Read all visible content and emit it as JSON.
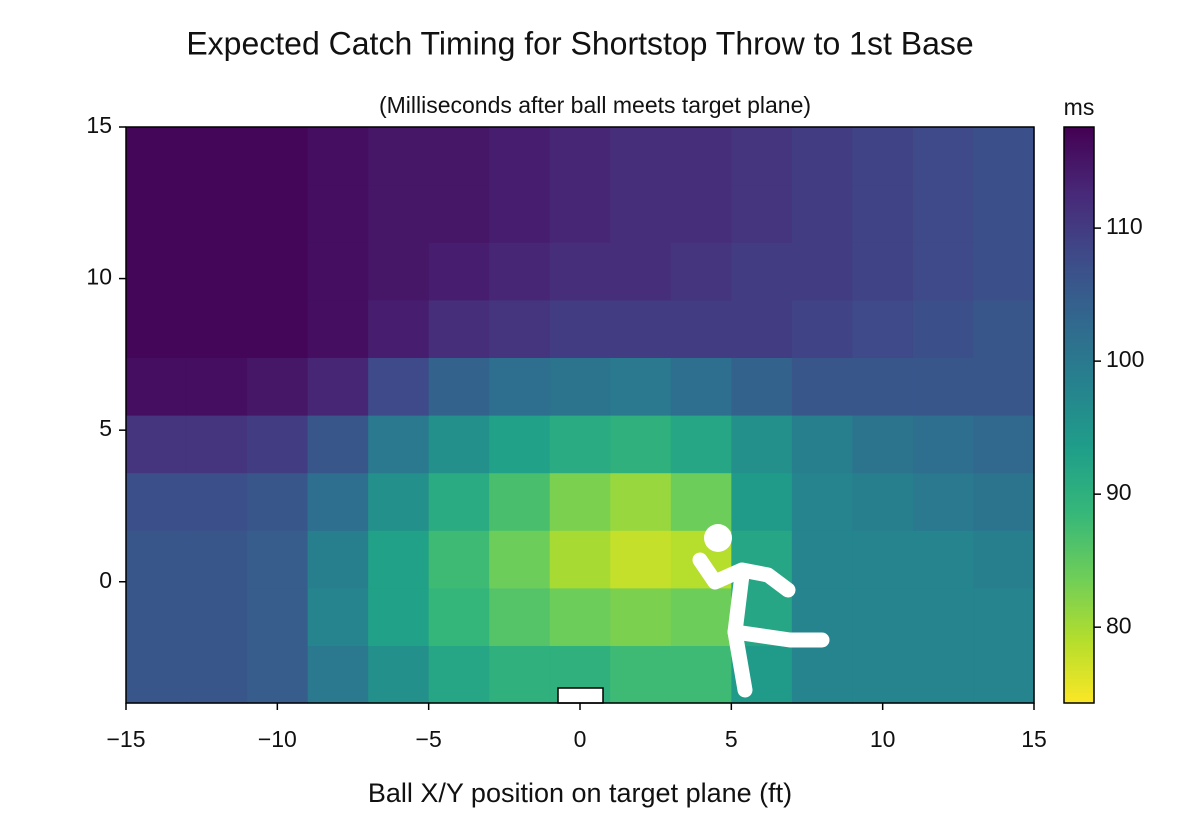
{
  "chart_data": {
    "type": "heatmap",
    "title": "Expected Catch Timing for Shortstop Throw to 1st Base",
    "subtitle": "(Milliseconds after ball meets target plane)",
    "x_label": "Ball X/Y position on target plane (ft)",
    "colorbar_label": "ms",
    "colormap": "viridis_r",
    "x_bins": [
      -15,
      -13,
      -11,
      -9,
      -7,
      -5,
      -3,
      -1,
      1,
      3,
      5,
      7,
      9,
      11,
      13,
      15
    ],
    "y_bins": [
      -4,
      -2.1,
      -0.2,
      1.7,
      3.6,
      5.5,
      7.4,
      9.3,
      11.2,
      13.1,
      15
    ],
    "values": [
      [
        106,
        106,
        105,
        100,
        96,
        92,
        90,
        90,
        88,
        88,
        94,
        98,
        98,
        98,
        98
      ],
      [
        106,
        106,
        105,
        98,
        93,
        89,
        86,
        84,
        83,
        84,
        92,
        98,
        98,
        98,
        98
      ],
      [
        106,
        106,
        105,
        99,
        93,
        88,
        84,
        80,
        78,
        79,
        92,
        98,
        98,
        98,
        99
      ],
      [
        107,
        107,
        106,
        102,
        96,
        91,
        87,
        83,
        81,
        84,
        94,
        98,
        99,
        100,
        101
      ],
      [
        111,
        111,
        110,
        106,
        100,
        96,
        93,
        91,
        90,
        92,
        96,
        99,
        101,
        102,
        103
      ],
      [
        116,
        116,
        115,
        113,
        108,
        104,
        102,
        101,
        100,
        102,
        104,
        106,
        106,
        106,
        106
      ],
      [
        117,
        117,
        117,
        116,
        114,
        112,
        111,
        110,
        110,
        110,
        110,
        109,
        108,
        107,
        106
      ],
      [
        117,
        117,
        117,
        116,
        115,
        114,
        113,
        112,
        112,
        111,
        110,
        110,
        109,
        108,
        107
      ],
      [
        117,
        117,
        117,
        116,
        115,
        115,
        114,
        113,
        112,
        112,
        111,
        110,
        109,
        108,
        107
      ],
      [
        117,
        117,
        117,
        116,
        115,
        115,
        114,
        113,
        112,
        112,
        111,
        110,
        109,
        108,
        107
      ]
    ],
    "xlim": [
      -15,
      15
    ],
    "ylim": [
      -4,
      15
    ],
    "clim": [
      74.3,
      117.6
    ],
    "xticks": [
      {
        "value": -15,
        "label": "−15"
      },
      {
        "value": -10,
        "label": "−10"
      },
      {
        "value": -5,
        "label": "−5"
      },
      0,
      5,
      10,
      15
    ],
    "yticks": [
      0,
      5,
      10,
      15
    ],
    "cticks": [
      80,
      90,
      100,
      110
    ]
  }
}
